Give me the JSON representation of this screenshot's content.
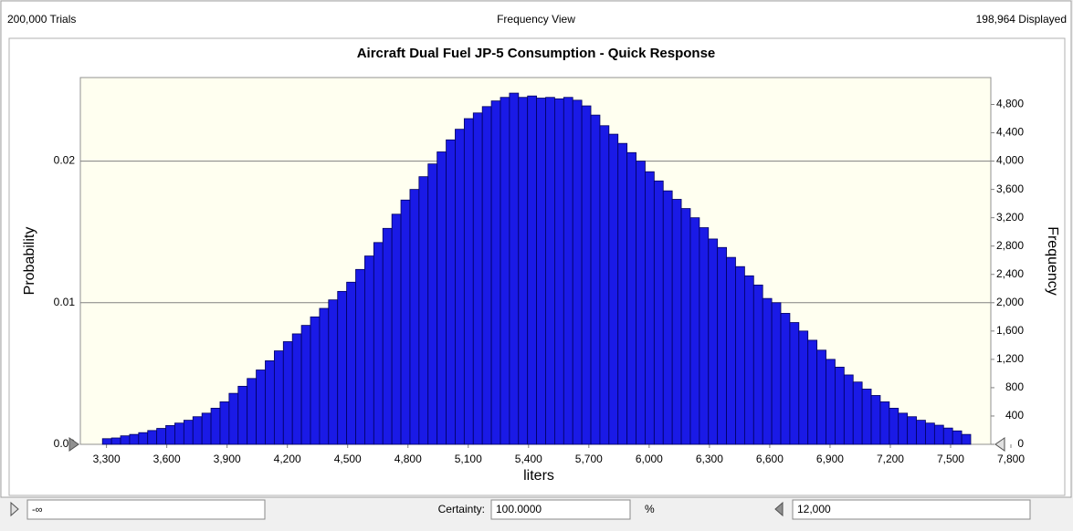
{
  "header": {
    "trials": "200,000 Trials",
    "view": "Frequency View",
    "displayed": "198,964 Displayed"
  },
  "chart_data": {
    "type": "histogram",
    "title": "Aircraft Dual Fuel JP-5 Consumption - Quick Response",
    "xlabel": "liters",
    "ylabel": "Probability",
    "y2label": "Frequency",
    "bins": [
      3280,
      3325,
      3370,
      3415,
      3460,
      3505,
      3550,
      3595,
      3640,
      3685,
      3730,
      3775,
      3820,
      3865,
      3910,
      3955,
      4000,
      4045,
      4090,
      4135,
      4180,
      4225,
      4270,
      4315,
      4360,
      4405,
      4450,
      4495,
      4540,
      4585,
      4630,
      4675,
      4720,
      4765,
      4810,
      4855,
      4900,
      4945,
      4990,
      5035,
      5080,
      5125,
      5170,
      5215,
      5260,
      5305,
      5350,
      5395,
      5440,
      5485,
      5530,
      5575,
      5620,
      5665,
      5710,
      5755,
      5800,
      5845,
      5890,
      5935,
      5980,
      6025,
      6070,
      6115,
      6160,
      6205,
      6250,
      6295,
      6340,
      6385,
      6430,
      6475,
      6520,
      6565,
      6610,
      6655,
      6700,
      6745,
      6790,
      6835,
      6880,
      6925,
      6970,
      7015,
      7060,
      7105,
      7150,
      7195,
      7240,
      7285,
      7330,
      7375,
      7420,
      7465,
      7510,
      7555,
      7600
    ],
    "series": [
      {
        "color": "#1a1ae6",
        "axis": "y2",
        "values": [
          80,
          90,
          120,
          140,
          165,
          195,
          225,
          265,
          300,
          340,
          390,
          440,
          510,
          600,
          720,
          820,
          930,
          1050,
          1180,
          1320,
          1450,
          1560,
          1680,
          1800,
          1920,
          2040,
          2160,
          2290,
          2470,
          2660,
          2850,
          3050,
          3250,
          3450,
          3600,
          3780,
          3960,
          4130,
          4300,
          4450,
          4600,
          4680,
          4770,
          4850,
          4900,
          4960,
          4900,
          4920,
          4890,
          4900,
          4880,
          4900,
          4860,
          4780,
          4650,
          4500,
          4380,
          4250,
          4120,
          4000,
          3850,
          3720,
          3580,
          3460,
          3330,
          3200,
          3060,
          2900,
          2780,
          2640,
          2510,
          2380,
          2250,
          2060,
          2000,
          1850,
          1720,
          1600,
          1470,
          1330,
          1200,
          1090,
          980,
          880,
          780,
          690,
          600,
          510,
          440,
          390,
          340,
          300,
          270,
          230,
          190,
          140
        ]
      }
    ],
    "xlim": [
      3170,
      7700
    ],
    "xticks": [
      {
        "value": 3300,
        "label": "3,300"
      },
      {
        "value": 3600,
        "label": "3,600"
      },
      {
        "value": 3900,
        "label": "3,900"
      },
      {
        "value": 4200,
        "label": "4,200"
      },
      {
        "value": 4500,
        "label": "4,500"
      },
      {
        "value": 4800,
        "label": "4,800"
      },
      {
        "value": 5100,
        "label": "5,100"
      },
      {
        "value": 5400,
        "label": "5,400"
      },
      {
        "value": 5700,
        "label": "5,700"
      },
      {
        "value": 6000,
        "label": "6,000"
      },
      {
        "value": 6300,
        "label": "6,300"
      },
      {
        "value": 6600,
        "label": "6,600"
      },
      {
        "value": 6900,
        "label": "6,900"
      },
      {
        "value": 7200,
        "label": "7,200"
      },
      {
        "value": 7500,
        "label": "7,500"
      },
      {
        "value": 7800,
        "label": "7,800"
      }
    ],
    "ylim": [
      0,
      0.0259
    ],
    "yticks": [
      {
        "value": 0,
        "label": "0.00"
      },
      0.01,
      0.02
    ],
    "y2lim": [
      0,
      5180
    ],
    "y2ticks": [
      0,
      400,
      800,
      {
        "value": 1200,
        "label": "1,200"
      },
      {
        "value": 1600,
        "label": "1,600"
      },
      {
        "value": 2000,
        "label": "2,000"
      },
      {
        "value": 2400,
        "label": "2,400"
      },
      {
        "value": 2800,
        "label": "2,800"
      },
      {
        "value": 3200,
        "label": "3,200"
      },
      {
        "value": 3600,
        "label": "3,600"
      },
      {
        "value": 4000,
        "label": "4,000"
      },
      {
        "value": 4400,
        "label": "4,400"
      },
      {
        "value": 4800,
        "label": "4,800"
      }
    ],
    "grid": true
  },
  "footer": {
    "left_value": "-∞",
    "certainty_label": "Certainty:",
    "certainty": "100.0000",
    "unit": "%",
    "right_value": "12,000"
  }
}
